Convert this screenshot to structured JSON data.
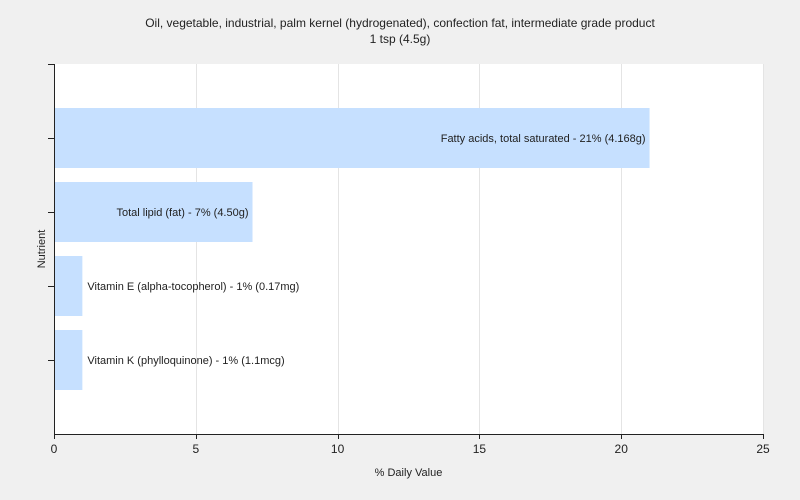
{
  "chart_data": {
    "type": "bar",
    "orientation": "horizontal",
    "title": "Oil, vegetable, industrial, palm kernel (hydrogenated), confection fat, intermediate grade product",
    "subtitle": "1 tsp (4.5g)",
    "xlabel": "% Daily Value",
    "ylabel": "Nutrient",
    "xlim": [
      0,
      25
    ],
    "xticks": [
      0,
      5,
      10,
      15,
      20,
      25
    ],
    "grid": "vertical",
    "legend": "none",
    "bar_color": "#c6e0ff",
    "bars": [
      {
        "value": 21,
        "label": "Fatty acids, total saturated - 21% (4.168g)"
      },
      {
        "value": 7,
        "label": "Total lipid (fat) - 7% (4.50g)"
      },
      {
        "value": 1,
        "label": "Vitamin E (alpha-tocopherol) - 1% (0.17mg)"
      },
      {
        "value": 1,
        "label": "Vitamin K (phylloquinone) - 1% (1.1mcg)"
      }
    ]
  }
}
